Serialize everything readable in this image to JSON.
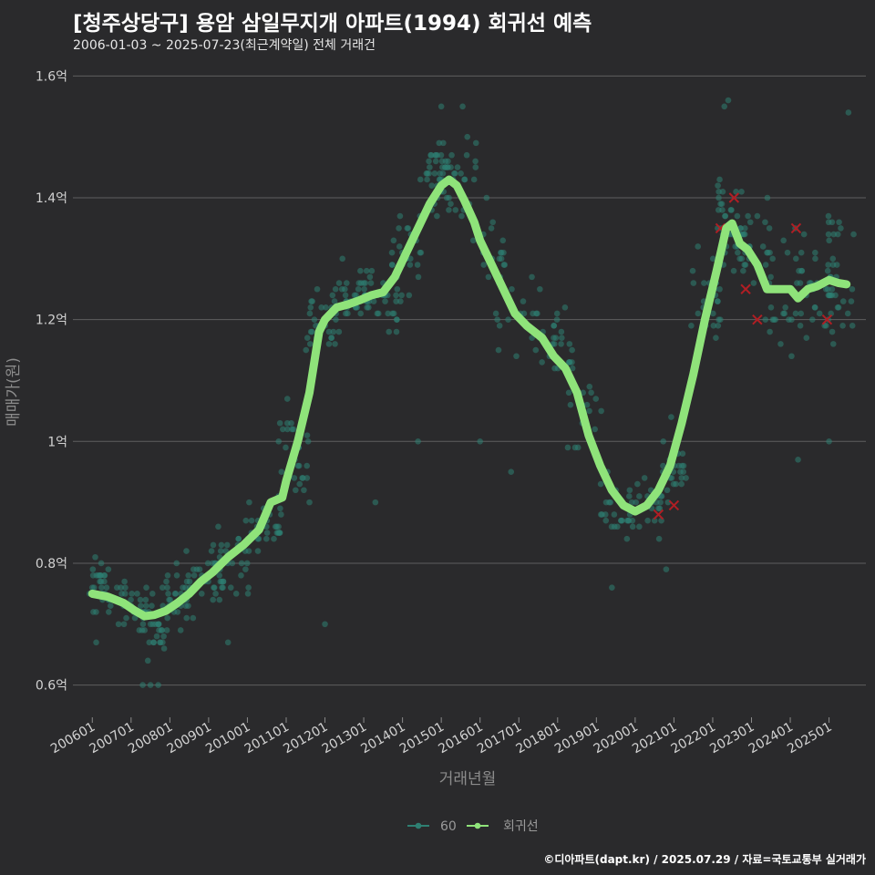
{
  "header": {
    "title": "[청주상당구] 용암 삼일무지개 아파트(1994) 회귀선 예측",
    "subtitle": "2006-01-03 ~ 2025-07-23(최근계약일) 전체 거래건"
  },
  "caption": "©디아파트(dapt.kr) / 2025.07.29 / 자료=국토교통부 실거래가",
  "colors": {
    "background": "#2a2a2c",
    "points": "#2e7f72",
    "regression": "#8fe37a",
    "outlier": "#b01e24",
    "grid": "#5f5f5f"
  },
  "chart_data": {
    "type": "scatter",
    "title": "[청주상당구] 용암 삼일무지개 아파트(1994) 회귀선 예측",
    "xlabel": "거래년월",
    "ylabel": "매매가(원)",
    "ylim": [
      0.55,
      1.62
    ],
    "xlim": [
      2005.5,
      2025.95
    ],
    "yticks": [
      {
        "v": 0.6,
        "label": "0.6억"
      },
      {
        "v": 0.8,
        "label": "0.8억"
      },
      {
        "v": 1.0,
        "label": "1억"
      },
      {
        "v": 1.2,
        "label": "1.2억"
      },
      {
        "v": 1.4,
        "label": "1.4억"
      },
      {
        "v": 1.6,
        "label": "1.6억"
      }
    ],
    "xticks": [
      {
        "v": 2006,
        "label": "200601"
      },
      {
        "v": 2007,
        "label": "200701"
      },
      {
        "v": 2008,
        "label": "200801"
      },
      {
        "v": 2009,
        "label": "200901"
      },
      {
        "v": 2010,
        "label": "201001"
      },
      {
        "v": 2011,
        "label": "201101"
      },
      {
        "v": 2012,
        "label": "201201"
      },
      {
        "v": 2013,
        "label": "201301"
      },
      {
        "v": 2014,
        "label": "201401"
      },
      {
        "v": 2015,
        "label": "201501"
      },
      {
        "v": 2016,
        "label": "201601"
      },
      {
        "v": 2017,
        "label": "201701"
      },
      {
        "v": 2018,
        "label": "201801"
      },
      {
        "v": 2019,
        "label": "201901"
      },
      {
        "v": 2020,
        "label": "202001"
      },
      {
        "v": 2021,
        "label": "202101"
      },
      {
        "v": 2022,
        "label": "202201"
      },
      {
        "v": 2023,
        "label": "202301"
      },
      {
        "v": 2024,
        "label": "202401"
      },
      {
        "v": 2025,
        "label": "202501"
      }
    ],
    "legend": {
      "position": "bottom",
      "items": [
        {
          "label": "60",
          "kind": "points"
        },
        {
          "label": "회귀선",
          "kind": "line"
        }
      ]
    },
    "series": [
      {
        "name": "회귀선",
        "kind": "line",
        "points": [
          [
            2006.0,
            0.75
          ],
          [
            2006.4,
            0.745
          ],
          [
            2006.8,
            0.735
          ],
          [
            2007.1,
            0.722
          ],
          [
            2007.35,
            0.713
          ],
          [
            2007.6,
            0.715
          ],
          [
            2007.9,
            0.722
          ],
          [
            2008.2,
            0.735
          ],
          [
            2008.5,
            0.75
          ],
          [
            2008.8,
            0.77
          ],
          [
            2009.1,
            0.785
          ],
          [
            2009.5,
            0.81
          ],
          [
            2009.9,
            0.83
          ],
          [
            2010.3,
            0.855
          ],
          [
            2010.6,
            0.9
          ],
          [
            2010.9,
            0.908
          ],
          [
            2011.0,
            0.935
          ],
          [
            2011.3,
            1.0
          ],
          [
            2011.6,
            1.08
          ],
          [
            2011.85,
            1.18
          ],
          [
            2012.0,
            1.2
          ],
          [
            2012.3,
            1.22
          ],
          [
            2012.6,
            1.225
          ],
          [
            2012.9,
            1.232
          ],
          [
            2013.2,
            1.24
          ],
          [
            2013.5,
            1.245
          ],
          [
            2013.8,
            1.27
          ],
          [
            2014.1,
            1.31
          ],
          [
            2014.4,
            1.35
          ],
          [
            2014.7,
            1.39
          ],
          [
            2015.0,
            1.42
          ],
          [
            2015.2,
            1.43
          ],
          [
            2015.4,
            1.42
          ],
          [
            2015.6,
            1.395
          ],
          [
            2015.85,
            1.36
          ],
          [
            2016.0,
            1.33
          ],
          [
            2016.3,
            1.29
          ],
          [
            2016.6,
            1.25
          ],
          [
            2016.9,
            1.21
          ],
          [
            2017.2,
            1.19
          ],
          [
            2017.6,
            1.17
          ],
          [
            2017.9,
            1.14
          ],
          [
            2018.2,
            1.12
          ],
          [
            2018.5,
            1.08
          ],
          [
            2018.8,
            1.01
          ],
          [
            2019.1,
            0.96
          ],
          [
            2019.4,
            0.92
          ],
          [
            2019.7,
            0.895
          ],
          [
            2020.0,
            0.885
          ],
          [
            2020.3,
            0.895
          ],
          [
            2020.6,
            0.92
          ],
          [
            2020.9,
            0.96
          ],
          [
            2021.2,
            1.03
          ],
          [
            2021.5,
            1.11
          ],
          [
            2021.8,
            1.2
          ],
          [
            2022.1,
            1.28
          ],
          [
            2022.35,
            1.35
          ],
          [
            2022.5,
            1.358
          ],
          [
            2022.7,
            1.325
          ],
          [
            2022.9,
            1.315
          ],
          [
            2023.15,
            1.29
          ],
          [
            2023.4,
            1.25
          ],
          [
            2023.7,
            1.25
          ],
          [
            2024.0,
            1.25
          ],
          [
            2024.2,
            1.235
          ],
          [
            2024.45,
            1.25
          ],
          [
            2024.7,
            1.255
          ],
          [
            2025.0,
            1.265
          ],
          [
            2025.25,
            1.26
          ],
          [
            2025.45,
            1.258
          ]
        ]
      },
      {
        "name": "60",
        "kind": "points",
        "clusters": [
          [
            2006.2,
            0.76,
            0.35,
            0.045,
            32
          ],
          [
            2007.0,
            0.73,
            0.4,
            0.04,
            30
          ],
          [
            2007.6,
            0.7,
            0.35,
            0.05,
            30
          ],
          [
            2008.2,
            0.74,
            0.4,
            0.05,
            30
          ],
          [
            2008.9,
            0.78,
            0.5,
            0.05,
            30
          ],
          [
            2009.6,
            0.81,
            0.5,
            0.05,
            28
          ],
          [
            2010.4,
            0.86,
            0.5,
            0.05,
            30
          ],
          [
            2011.2,
            0.98,
            0.4,
            0.08,
            30
          ],
          [
            2011.9,
            1.2,
            0.4,
            0.06,
            30
          ],
          [
            2012.6,
            1.23,
            0.5,
            0.05,
            32
          ],
          [
            2013.4,
            1.24,
            0.5,
            0.05,
            32
          ],
          [
            2014.1,
            1.3,
            0.4,
            0.08,
            30
          ],
          [
            2014.8,
            1.44,
            0.35,
            0.06,
            34
          ],
          [
            2015.5,
            1.43,
            0.4,
            0.07,
            30
          ],
          [
            2016.2,
            1.32,
            0.45,
            0.07,
            22
          ],
          [
            2017.0,
            1.2,
            0.6,
            0.07,
            20
          ],
          [
            2017.9,
            1.15,
            0.5,
            0.06,
            24
          ],
          [
            2018.7,
            1.05,
            0.5,
            0.08,
            18
          ],
          [
            2019.5,
            0.88,
            0.4,
            0.06,
            26
          ],
          [
            2020.3,
            0.88,
            0.4,
            0.05,
            24
          ],
          [
            2021.0,
            0.96,
            0.35,
            0.06,
            26
          ],
          [
            2021.8,
            1.25,
            0.4,
            0.1,
            28
          ],
          [
            2022.4,
            1.36,
            0.4,
            0.07,
            34
          ],
          [
            2023.0,
            1.32,
            0.5,
            0.08,
            30
          ],
          [
            2023.8,
            1.23,
            0.5,
            0.08,
            28
          ],
          [
            2024.6,
            1.25,
            0.5,
            0.08,
            30
          ],
          [
            2025.3,
            1.28,
            0.35,
            0.12,
            30
          ]
        ],
        "extra_points": [
          [
            2015.0,
            1.55
          ],
          [
            2015.55,
            1.55
          ],
          [
            2022.4,
            1.56
          ],
          [
            2025.5,
            1.54
          ],
          [
            2022.3,
            1.55
          ],
          [
            2007.3,
            0.6
          ],
          [
            2007.5,
            0.6
          ],
          [
            2007.7,
            0.6
          ],
          [
            2012.0,
            0.7
          ],
          [
            2019.4,
            0.76
          ],
          [
            2020.8,
            0.79
          ],
          [
            2016.0,
            1.0
          ],
          [
            2016.8,
            0.95
          ],
          [
            2014.4,
            1.0
          ],
          [
            2013.3,
            0.9
          ],
          [
            2011.6,
            0.9
          ],
          [
            2024.2,
            0.97
          ],
          [
            2025.0,
            1.0
          ],
          [
            2009.5,
            0.67
          ],
          [
            2006.1,
            0.67
          ]
        ]
      },
      {
        "name": "이상치",
        "kind": "x-markers",
        "points": [
          [
            2020.6,
            0.88
          ],
          [
            2021.0,
            0.895
          ],
          [
            2022.2,
            1.35
          ],
          [
            2022.55,
            1.4
          ],
          [
            2022.85,
            1.25
          ],
          [
            2023.15,
            1.2
          ],
          [
            2024.15,
            1.35
          ],
          [
            2024.95,
            1.2
          ]
        ]
      }
    ]
  }
}
